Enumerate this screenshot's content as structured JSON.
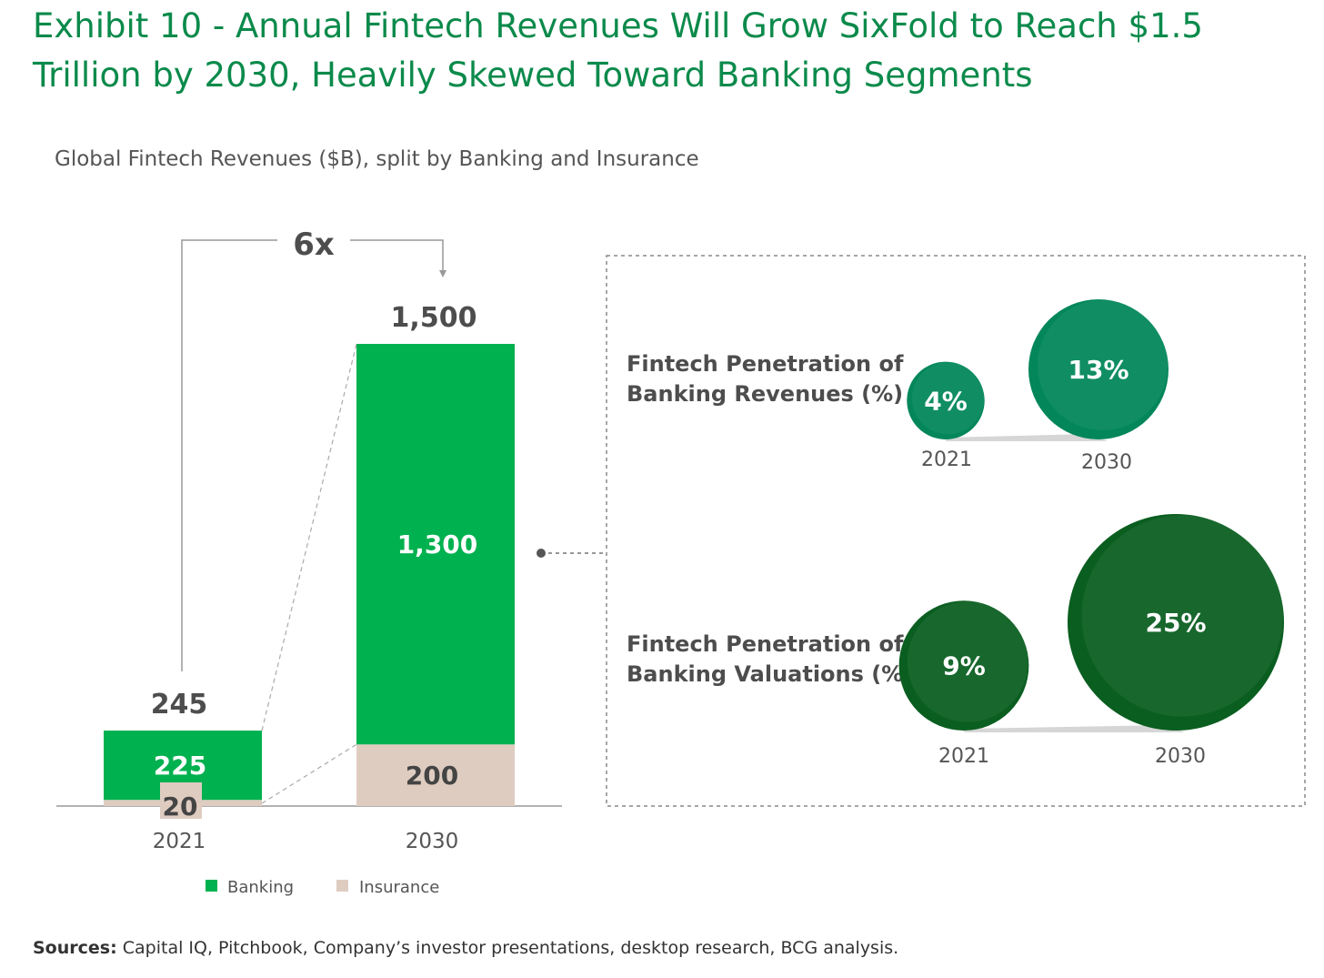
{
  "title": {
    "line1": "Exhibit 10 - Annual Fintech Revenues Will Grow SixFold to Reach $1.5",
    "line2": "Trillion by 2030, Heavily Skewed Toward Banking Segments"
  },
  "subtitle": "Global Fintech Revenues ($B), split by Banking and Insurance",
  "colors": {
    "title": "#0b8a4b",
    "banking": "#00b14f",
    "insurance": "#dfccc1",
    "bubble_revenue": "#02865a",
    "bubble_valuation": "#0a5e20"
  },
  "chart_data": [
    {
      "type": "bar",
      "stacked": true,
      "categories": [
        "2021",
        "2030"
      ],
      "series": [
        {
          "name": "Banking",
          "values": [
            225,
            1300
          ],
          "labels": [
            "225",
            "1,300"
          ]
        },
        {
          "name": "Insurance",
          "values": [
            20,
            200
          ],
          "labels": [
            "20",
            "200"
          ]
        }
      ],
      "totals": [
        245,
        1500
      ],
      "total_labels": [
        "245",
        "1,500"
      ],
      "growth_label": "6x",
      "legend_position": "bottom"
    },
    {
      "type": "bubble",
      "title_line1": "Fintech Penetration of",
      "title_line2": "Banking Revenues (%)",
      "categories": [
        "2021",
        "2030"
      ],
      "values": [
        4,
        13
      ],
      "labels": [
        "4%",
        "13%"
      ]
    },
    {
      "type": "bubble",
      "title_line1": "Fintech Penetration of",
      "title_line2": "Banking Valuations (%)",
      "categories": [
        "2021",
        "2030"
      ],
      "values": [
        9,
        25
      ],
      "labels": [
        "9%",
        "25%"
      ]
    }
  ],
  "sources": {
    "label": "Sources:",
    "text": " Capital IQ, Pitchbook, Company’s investor presentations, desktop research, BCG analysis."
  }
}
